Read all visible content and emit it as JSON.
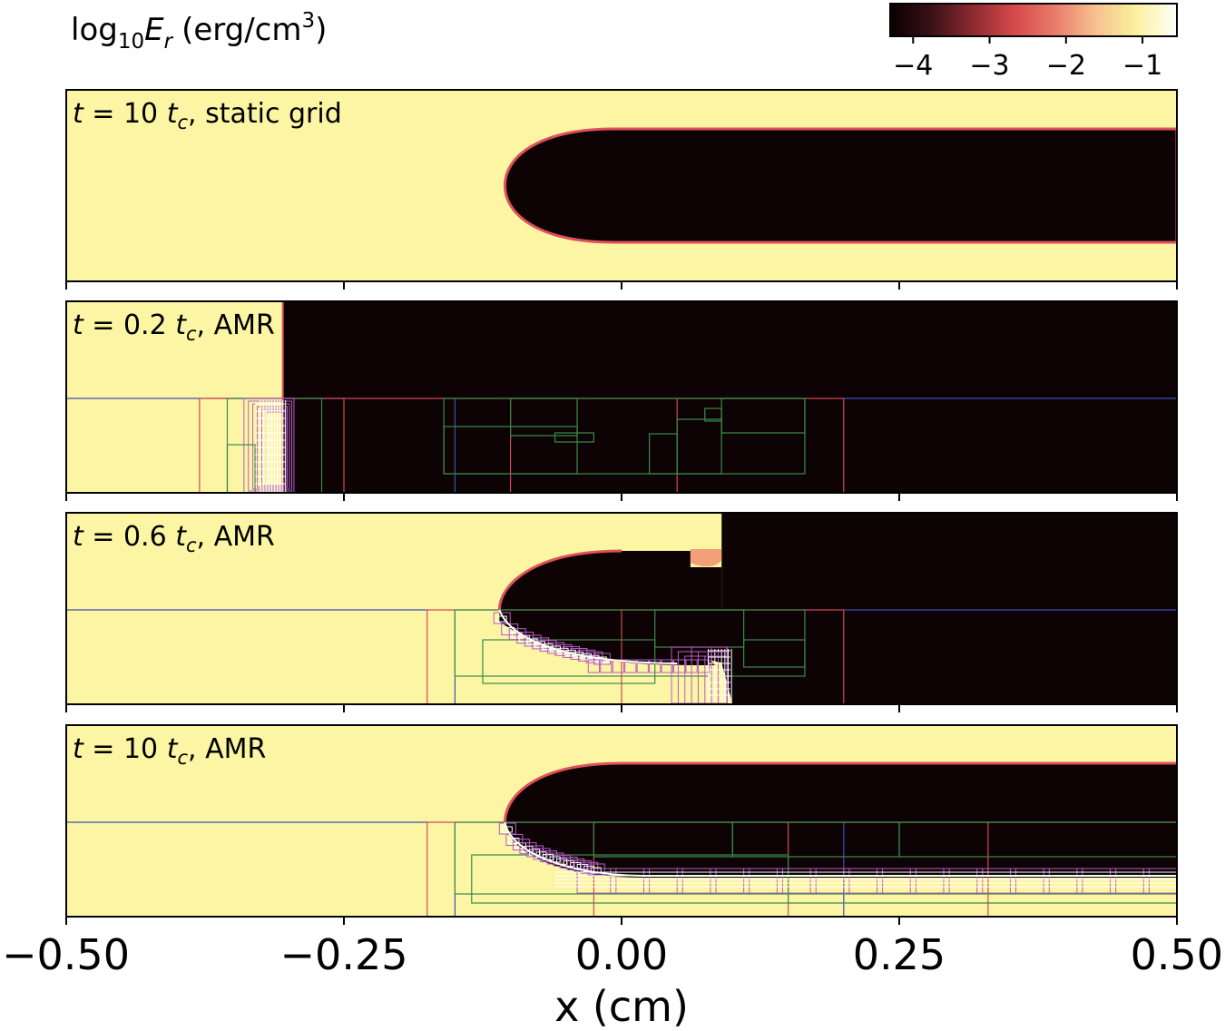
{
  "colorbar": {
    "title": "log",
    "title_sub": "10",
    "title_var": "E",
    "title_var_sub": "r",
    "title_units": "(erg/cm",
    "title_units_sup": "3",
    "title_units_end": ")",
    "ticks": [
      {
        "value": -4,
        "label": "−4"
      },
      {
        "value": -3,
        "label": "−3"
      },
      {
        "value": -2,
        "label": "−2"
      },
      {
        "value": -1,
        "label": "−1"
      }
    ],
    "range": [
      -4.3,
      -0.55
    ],
    "colormap": [
      "#0a0000",
      "#3a1018",
      "#8a2a30",
      "#d4484a",
      "#e87a6a",
      "#f6c090",
      "#fbf09e",
      "#fffffa"
    ]
  },
  "chart_data": {
    "type": "heatmap",
    "xlabel": "x (cm)",
    "xlim": [
      -0.5,
      0.5
    ],
    "xticks": [
      {
        "value": -0.5,
        "label": "−0.50"
      },
      {
        "value": -0.25,
        "label": "−0.25"
      },
      {
        "value": 0.0,
        "label": "0.00"
      },
      {
        "value": 0.25,
        "label": "0.25"
      },
      {
        "value": 0.5,
        "label": "0.50"
      }
    ],
    "colors": {
      "high": "#fcf6a4",
      "low": "#0d0304",
      "edge": "#e0505a",
      "grid_level0": "#3a4fb0",
      "grid_level1": "#d2485a",
      "grid_level2": "#3a8a4a",
      "grid_level3": "#b85cc8",
      "grid_fine": "#ffffff"
    },
    "panels": [
      {
        "label_t": "t",
        "label_eq": " = 10 ",
        "label_tc": "t",
        "label_tc_sub": "c",
        "label_rest": ", static grid",
        "front_x": -0.105,
        "mode": "static"
      },
      {
        "label_t": "t",
        "label_eq": " = 0.2 ",
        "label_tc": "t",
        "label_tc_sub": "c",
        "label_rest": ", AMR",
        "front_x": -0.305,
        "mode": "early"
      },
      {
        "label_t": "t",
        "label_eq": " = 0.6 ",
        "label_tc": "t",
        "label_tc_sub": "c",
        "label_rest": ", AMR",
        "front_x": -0.11,
        "mode": "mid"
      },
      {
        "label_t": "t",
        "label_eq": " = 10 ",
        "label_tc": "t",
        "label_tc_sub": "c",
        "label_rest": ", AMR",
        "front_x": -0.105,
        "mode": "late"
      }
    ]
  }
}
